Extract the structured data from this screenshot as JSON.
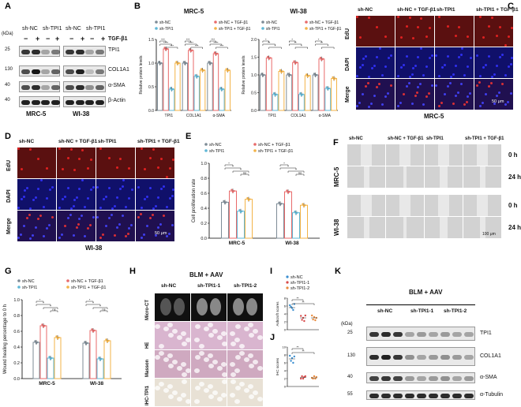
{
  "panels": {
    "A": "A",
    "B": "B",
    "C": "C",
    "D": "D",
    "E": "E",
    "F": "F",
    "G": "G",
    "H": "H",
    "I": "I",
    "J": "J",
    "K": "K"
  },
  "colors": {
    "shNC": "#7d8b96",
    "shNCTGF": "#e86a6a",
    "shTPI1": "#5fb7d6",
    "shTPI1TGF": "#f3b347",
    "blot_bg": "#e9e9e9",
    "band": "#1a1a1a",
    "edu": "#5a1010",
    "dapi": "#10106a",
    "brightfield": "#d2d2d2",
    "he": "#d9b5cf",
    "masson": "#cfa9c0",
    "ihc": "#e8e1d5",
    "ct": "#101010",
    "j_ncs": "#3b8fd0",
    "j_t1": "#d84a4a",
    "j_t2": "#e98b3d"
  },
  "A": {
    "header": [
      "sh-NC",
      "sh-TPI1",
      "sh-NC",
      "sh-TPI1"
    ],
    "kda_label": "(kDa)",
    "tgf_label": "TGF-β1",
    "tgf_marks": [
      "−",
      "+",
      "−",
      "+",
      "−",
      "+",
      "−",
      "+"
    ],
    "markers": [
      "25",
      "130",
      "40",
      "40"
    ],
    "proteins": [
      "TPI1",
      "COL1A1",
      "α-SMA",
      "β-Actin"
    ],
    "cells": [
      "MRC-5",
      "WI-38"
    ]
  },
  "B": {
    "legend": [
      "sh-NC",
      "sh-NC + TGF-β1",
      "sh-TPI1",
      "sh-TPI1 + TGF-β1"
    ],
    "chart_data": [
      {
        "type": "bar",
        "title": "MRC-5",
        "ylabel": "Relative protein levels",
        "ylim": [
          0,
          1.5
        ],
        "yticks": [
          "0.0",
          "0.5",
          "1.0",
          "1.5"
        ],
        "categories": [
          "TPI1",
          "COL1A1",
          "α-SMA"
        ],
        "series": [
          {
            "name": "sh-NC",
            "values": [
              1.0,
              1.0,
              1.0
            ]
          },
          {
            "name": "sh-NC + TGF-β1",
            "values": [
              1.3,
              1.27,
              1.2
            ]
          },
          {
            "name": "sh-TPI1",
            "values": [
              0.45,
              0.72,
              0.45
            ]
          },
          {
            "name": "sh-TPI1 + TGF-β1",
            "values": [
              1.0,
              0.85,
              0.85
            ]
          }
        ]
      },
      {
        "type": "bar",
        "title": "WI-38",
        "ylabel": "Relative protein levels",
        "ylim": [
          0,
          2.0
        ],
        "yticks": [
          "0.0",
          "0.5",
          "1.0",
          "1.5",
          "2.0"
        ],
        "categories": [
          "TPI1",
          "COL1A1",
          "α-SMA"
        ],
        "series": [
          {
            "name": "sh-NC",
            "values": [
              1.0,
              1.0,
              1.0
            ]
          },
          {
            "name": "sh-NC + TGF-β1",
            "values": [
              1.48,
              1.35,
              1.45
            ]
          },
          {
            "name": "sh-TPI1",
            "values": [
              0.45,
              0.45,
              0.62
            ]
          },
          {
            "name": "sh-TPI1 + TGF-β1",
            "values": [
              1.1,
              0.98,
              0.9
            ]
          }
        ]
      }
    ]
  },
  "C": {
    "cols": [
      "sh-NC",
      "sh-NC + TGF-β1",
      "sh-TPI1",
      "sh-TPI1 + TGF-β1"
    ],
    "rows": [
      "EdU",
      "DAPI",
      "Merge"
    ],
    "scale": "50 μm",
    "caption": "MRC-5"
  },
  "D": {
    "cols": [
      "sh-NC",
      "sh-NC + TGF-β1",
      "sh-TPI1",
      "sh-TPI1 + TGF-β1"
    ],
    "rows": [
      "EdU",
      "DAPI",
      "Merge"
    ],
    "scale": "50 μm",
    "caption": "WI-38"
  },
  "E": {
    "legend": [
      "sh-NC",
      "sh-NC + TGF-β1",
      "sh-TPI1",
      "sh-TPI1 + TGF-β1"
    ],
    "chart_data": {
      "type": "bar",
      "ylabel": "Cell proliferation rate",
      "ylim": [
        0,
        1.0
      ],
      "yticks": [
        "0.0",
        "0.2",
        "0.4",
        "0.6",
        "0.8",
        "1.0"
      ],
      "categories": [
        "MRC-5",
        "WI-38"
      ],
      "series": [
        {
          "name": "sh-NC",
          "values": [
            0.48,
            0.46
          ]
        },
        {
          "name": "sh-NC + TGF-β1",
          "values": [
            0.63,
            0.62
          ]
        },
        {
          "name": "sh-TPI1",
          "values": [
            0.36,
            0.34
          ]
        },
        {
          "name": "sh-TPI1 + TGF-β1",
          "values": [
            0.52,
            0.44
          ]
        }
      ]
    }
  },
  "F": {
    "cols": [
      "sh-NC",
      "sh-NC + TGF-β1",
      "sh-TPI1",
      "sh-TPI1 + TGF-β1"
    ],
    "cells": [
      "MRC-5",
      "WI-38"
    ],
    "times": [
      "0 h",
      "24 h",
      "0 h",
      "24 h"
    ],
    "scale": "100 μm"
  },
  "G": {
    "legend": [
      "sh-NC",
      "sh-NC + TGF-β1",
      "sh-TPI1",
      "sh-TPI1 + TGF-β1"
    ],
    "chart_data": {
      "type": "bar",
      "ylabel": "Wound healing percentage to 0 h",
      "ylim": [
        0,
        1.0
      ],
      "yticks": [
        "0.0",
        "0.2",
        "0.4",
        "0.6",
        "0.8",
        "1.0"
      ],
      "categories": [
        "MRC-5",
        "WI-38"
      ],
      "series": [
        {
          "name": "sh-NC",
          "values": [
            0.46,
            0.45
          ]
        },
        {
          "name": "sh-NC + TGF-β1",
          "values": [
            0.67,
            0.61
          ]
        },
        {
          "name": "sh-TPI1",
          "values": [
            0.26,
            0.25
          ]
        },
        {
          "name": "sh-TPI1 + TGF-β1",
          "values": [
            0.52,
            0.48
          ]
        }
      ]
    }
  },
  "H": {
    "title": "BLM + AAV",
    "cols": [
      "sh-NC",
      "sh-TPI1-1",
      "sh-TPI1-2"
    ],
    "rows": [
      "Micro-CT",
      "HE",
      "Masson",
      "IHC-TPI1"
    ]
  },
  "I": {
    "legend": [
      "sh-NC",
      "sh-TPI1-1",
      "sh-TPI1-2"
    ],
    "chart_data": {
      "type": "scatter",
      "ylabel": "Ashcroft scores",
      "ylim": [
        0,
        8
      ],
      "yticks": [
        "0",
        "2",
        "4",
        "6",
        "8"
      ],
      "categories": [
        "sh-NC",
        "sh-TPI1-1",
        "sh-TPI1-2"
      ],
      "means": [
        5.6,
        3.0,
        3.0
      ],
      "points": [
        [
          6.2,
          5.8,
          5.5,
          5.0,
          6.5
        ],
        [
          3.5,
          2.5,
          3.0,
          2.2,
          3.6
        ],
        [
          3.6,
          2.6,
          3.2,
          2.4,
          3.0
        ]
      ]
    }
  },
  "J": {
    "chart_data": {
      "type": "scatter",
      "ylabel": "IHC scores",
      "ylim": [
        0,
        10
      ],
      "yticks": [
        "0",
        "2",
        "4",
        "6",
        "8",
        "10"
      ],
      "categories": [
        "sh-NC",
        "sh-TPI1-1",
        "sh-TPI1-2"
      ],
      "means": [
        7.0,
        2.3,
        2.2
      ],
      "points": [
        [
          7.8,
          6.5,
          7.2,
          6.0,
          7.6
        ],
        [
          2.0,
          2.6,
          2.0,
          2.4,
          2.6
        ],
        [
          2.2,
          2.0,
          2.6,
          2.0,
          2.4
        ]
      ]
    }
  },
  "K": {
    "title": "BLM + AAV",
    "groups": [
      "sh-NC",
      "sh-TPI1-1",
      "sh-TPI1-2"
    ],
    "kda_label": "(kDa)",
    "markers": [
      "25",
      "130",
      "40",
      "55"
    ],
    "proteins": [
      "TPI1",
      "COL1A1",
      "α-SMA",
      "α-Tubulin"
    ]
  },
  "sig": {
    "s1": "*",
    "s2": "**",
    "s3": "***",
    "s4": "****",
    "ns": "ns"
  }
}
